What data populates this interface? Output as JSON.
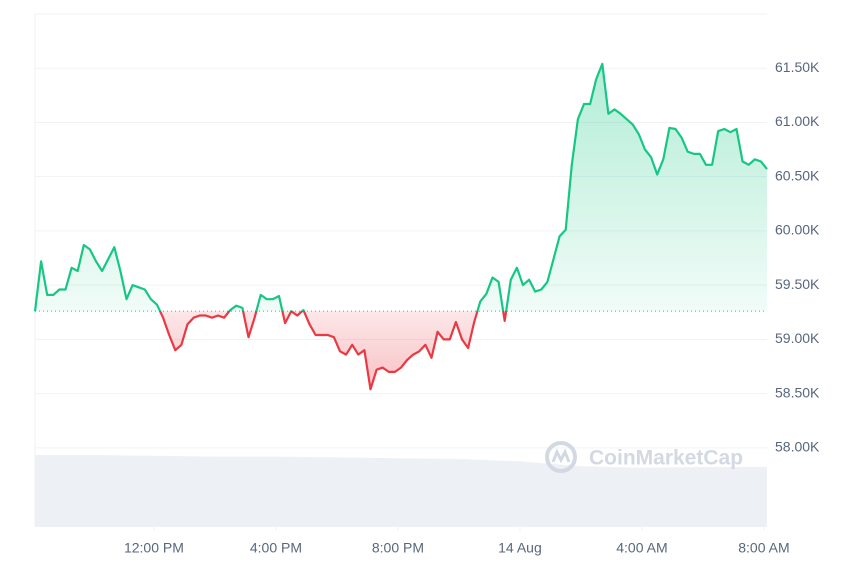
{
  "chart_data": {
    "type": "line",
    "watermark": "CoinMarketCap",
    "up_color": "#16c784",
    "down_color": "#ea3943",
    "baseline": 59260,
    "grid": true,
    "xlim": [
      8.1,
      32.1
    ],
    "xticks": [
      {
        "value": 12,
        "label": "12:00 PM"
      },
      {
        "value": 16,
        "label": "4:00 PM"
      },
      {
        "value": 20,
        "label": "8:00 PM"
      },
      {
        "value": 24,
        "label": "14 Aug"
      },
      {
        "value": 28,
        "label": "4:00 AM"
      },
      {
        "value": 32,
        "label": "8:00 AM"
      }
    ],
    "ylim": [
      57270,
      62000
    ],
    "yticks": [
      {
        "value": 58000,
        "label": "58.00K"
      },
      {
        "value": 58500,
        "label": "58.50K"
      },
      {
        "value": 59000,
        "label": "59.00K"
      },
      {
        "value": 59500,
        "label": "59.50K"
      },
      {
        "value": 60000,
        "label": "60.00K"
      },
      {
        "value": 60500,
        "label": "60.50K"
      },
      {
        "value": 61000,
        "label": "61.00K"
      },
      {
        "value": 61500,
        "label": "61.50K"
      }
    ],
    "x": [
      8.1,
      8.3,
      8.5,
      8.7,
      8.9,
      9.1,
      9.3,
      9.5,
      9.7,
      9.9,
      10.1,
      10.3,
      10.5,
      10.7,
      10.9,
      11.1,
      11.3,
      11.5,
      11.7,
      11.9,
      12.1,
      12.3,
      12.5,
      12.7,
      12.9,
      13.1,
      13.3,
      13.5,
      13.7,
      13.9,
      14.1,
      14.3,
      14.5,
      14.7,
      14.9,
      15.1,
      15.3,
      15.5,
      15.7,
      15.9,
      16.1,
      16.3,
      16.5,
      16.7,
      16.9,
      17.1,
      17.3,
      17.5,
      17.7,
      17.9,
      18.1,
      18.3,
      18.5,
      18.7,
      18.9,
      19.1,
      19.3,
      19.5,
      19.7,
      19.9,
      20.1,
      20.3,
      20.5,
      20.7,
      20.9,
      21.1,
      21.3,
      21.5,
      21.7,
      21.9,
      22.1,
      22.3,
      22.5,
      22.7,
      22.9,
      23.1,
      23.3,
      23.5,
      23.7,
      23.9,
      24.1,
      24.3,
      24.5,
      24.7,
      24.9,
      25.1,
      25.3,
      25.5,
      25.7,
      25.9,
      26.1,
      26.3,
      26.5,
      26.7,
      26.9,
      27.1,
      27.3,
      27.5,
      27.7,
      27.9,
      28.1,
      28.3,
      28.5,
      28.7,
      28.9,
      29.1,
      29.3,
      29.5,
      29.7,
      29.9,
      30.1,
      30.3,
      30.5,
      30.7,
      30.9,
      31.1,
      31.3,
      31.5,
      31.7,
      31.9,
      32.1
    ],
    "values": [
      59260,
      59720,
      59410,
      59410,
      59460,
      59460,
      59660,
      59630,
      59870,
      59830,
      59720,
      59630,
      59740,
      59850,
      59630,
      59370,
      59500,
      59480,
      59460,
      59370,
      59320,
      59200,
      59040,
      58900,
      58950,
      59140,
      59200,
      59220,
      59220,
      59200,
      59220,
      59200,
      59270,
      59310,
      59290,
      59020,
      59200,
      59410,
      59370,
      59370,
      59400,
      59150,
      59260,
      59220,
      59270,
      59140,
      59040,
      59040,
      59040,
      59020,
      58890,
      58860,
      58950,
      58860,
      58900,
      58540,
      58720,
      58740,
      58700,
      58700,
      58740,
      58810,
      58860,
      58890,
      58950,
      58830,
      59070,
      59000,
      59000,
      59160,
      59000,
      58920,
      59160,
      59350,
      59420,
      59570,
      59530,
      59170,
      59550,
      59660,
      59500,
      59550,
      59440,
      59460,
      59530,
      59740,
      59950,
      60010,
      60610,
      61030,
      61170,
      61170,
      61400,
      61540,
      61080,
      61120,
      61080,
      61030,
      60980,
      60890,
      60750,
      60680,
      60520,
      60660,
      60950,
      60940,
      60860,
      60730,
      60710,
      60710,
      60610,
      60610,
      60920,
      60940,
      60910,
      60940,
      60640,
      60610,
      60660,
      60640,
      60570
    ],
    "volume": {
      "color": "#edf0f5",
      "vlim": [
        0,
        100
      ],
      "x": [
        8.1,
        10,
        12,
        14,
        16,
        18,
        20,
        22,
        24,
        26,
        28,
        30,
        32.1
      ],
      "values": [
        90,
        90,
        89,
        88,
        88,
        87,
        86,
        85,
        82,
        76,
        74,
        75,
        75
      ]
    }
  }
}
